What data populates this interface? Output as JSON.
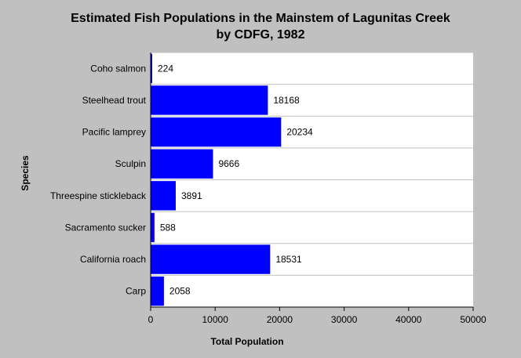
{
  "chart_data": {
    "type": "bar",
    "orientation": "horizontal",
    "title": [
      "Estimated Fish Populations in the Mainstem of Lagunitas Creek",
      "by CDFG, 1982"
    ],
    "xlabel": "Total Population",
    "ylabel": "Species",
    "categories": [
      "Coho salmon",
      "Steelhead trout",
      "Pacific lamprey",
      "Sculpin",
      "Threespine stickleback",
      "Sacramento sucker",
      "California roach",
      "Carp"
    ],
    "values": [
      224,
      18168,
      20234,
      9666,
      3891,
      588,
      18531,
      2058
    ],
    "xlim": [
      0,
      50000
    ],
    "xticks": [
      0,
      10000,
      20000,
      30000,
      40000,
      50000
    ],
    "grid": "horizontal lines between categories",
    "legend": "none",
    "colors": {
      "background": "#c0c0c0",
      "plot_background": "#ffffff",
      "bar": "#0000ff",
      "gridline": "#c0c0c0",
      "axis": "#000000"
    }
  }
}
